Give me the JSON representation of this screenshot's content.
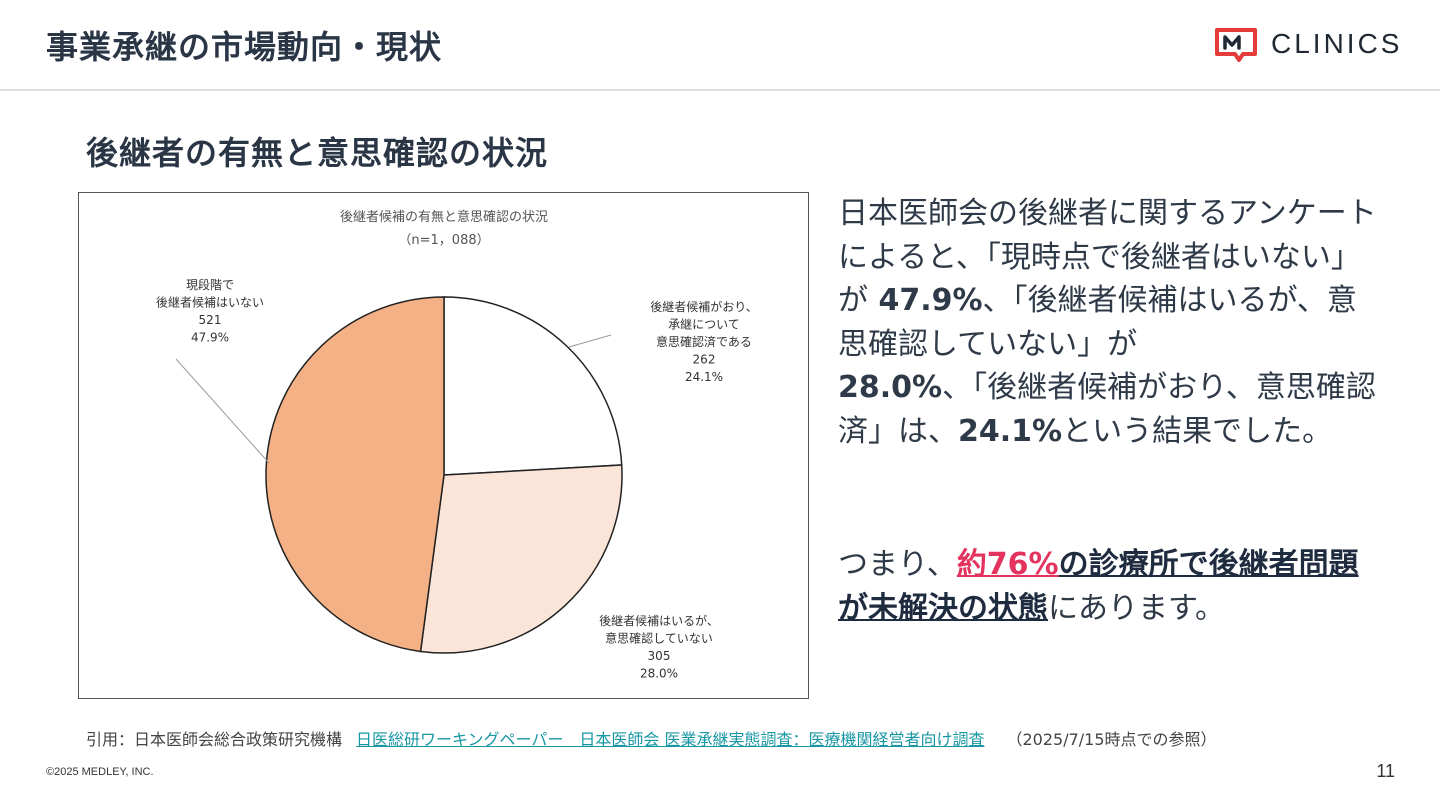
{
  "header": {
    "title": "事業承継の市場動向・現状",
    "logo_text": "CLINICS"
  },
  "section_title": "後継者の有無と意思確認の状況",
  "chart_data": {
    "type": "pie",
    "title": "後継者候補の有無と意思確認の状況",
    "subtitle": "（n=1，088）",
    "slices": [
      {
        "label_lines": [
          "後継者候補がおり、",
          "承継について",
          "意思確認済である"
        ],
        "count": "262",
        "percent": "24.1%",
        "value": 24.1,
        "color": "#ffffff"
      },
      {
        "label_lines": [
          "後継者候補はいるが、",
          "意思確認していない"
        ],
        "count": "305",
        "percent": "28.0%",
        "value": 28.0,
        "color": "#fbe5d8"
      },
      {
        "label_lines": [
          "現段階で",
          "後継者候補はいない"
        ],
        "count": "521",
        "percent": "47.9%",
        "value": 47.9,
        "color": "#f4b186"
      }
    ],
    "stroke_color": "#222222"
  },
  "body": {
    "p1": "日本医師会の後継者に関するアンケートによると、「現時点で後継者はいない」が",
    "v1": " 47.9%",
    "p2": "、「後継者候補はいるが、意思確認していない」が",
    "v2": "28.0%",
    "p3": "、「後継者候補がおり、意思確認済」は、",
    "v3": "24.1%",
    "p4": "という結果でした。"
  },
  "conclusion": {
    "prefix": "つまり、",
    "highlight": "約76%",
    "mid": "の診療所で後継者問題が未解決の状態",
    "suffix": "にあります。"
  },
  "citation": {
    "prefix": "引用：日本医師会総合政策研究機構",
    "link1": "日医総研ワーキングペーパー　日本医師会 医業承継実態調査：医療機関経営者向け調査",
    "suffix": "（2025/7/15時点での参照）"
  },
  "footer": {
    "copyright": "©2025 MEDLEY, INC.",
    "page_number": "11"
  },
  "colors": {
    "accent_pink": "#e4335f",
    "brand_red": "#e63b3b",
    "link_teal": "#1797a3"
  }
}
